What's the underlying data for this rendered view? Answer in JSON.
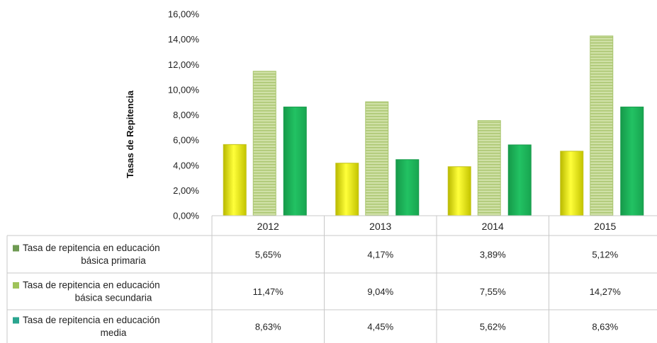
{
  "chart_data": {
    "type": "bar",
    "title": "",
    "xlabel": "",
    "ylabel": "Tasas de Repitencia",
    "ylim": [
      0,
      16
    ],
    "yticks": [
      "0,00%",
      "2,00%",
      "4,00%",
      "6,00%",
      "8,00%",
      "10,00%",
      "12,00%",
      "14,00%",
      "16,00%"
    ],
    "categories": [
      "2012",
      "2013",
      "2014",
      "2015"
    ],
    "grid": false,
    "legend": "data-table-left",
    "series": [
      {
        "name_lines": [
          "Tasa de repitencia en educación",
          "básica primaria"
        ],
        "values": [
          5.65,
          4.17,
          3.89,
          5.12
        ],
        "labels": [
          "5,65%",
          "4,17%",
          "3,89%",
          "5,12%"
        ],
        "color": "#f2f215",
        "legend_color": "#6e9a52"
      },
      {
        "name_lines": [
          "Tasa de repitencia en educación",
          "básica secundaria"
        ],
        "values": [
          11.47,
          9.04,
          7.55,
          14.27
        ],
        "labels": [
          "11,47%",
          "9,04%",
          "7,55%",
          "14,27%"
        ],
        "color": "#c6d99a",
        "legend_color": "#9fc35a"
      },
      {
        "name_lines": [
          "Tasa de repitencia en educación",
          "media"
        ],
        "values": [
          8.63,
          4.45,
          5.62,
          8.63
        ],
        "labels": [
          "8,63%",
          "4,45%",
          "5,62%",
          "8,63%"
        ],
        "color": "#1cb85a",
        "legend_color": "#2aa58f"
      }
    ]
  }
}
